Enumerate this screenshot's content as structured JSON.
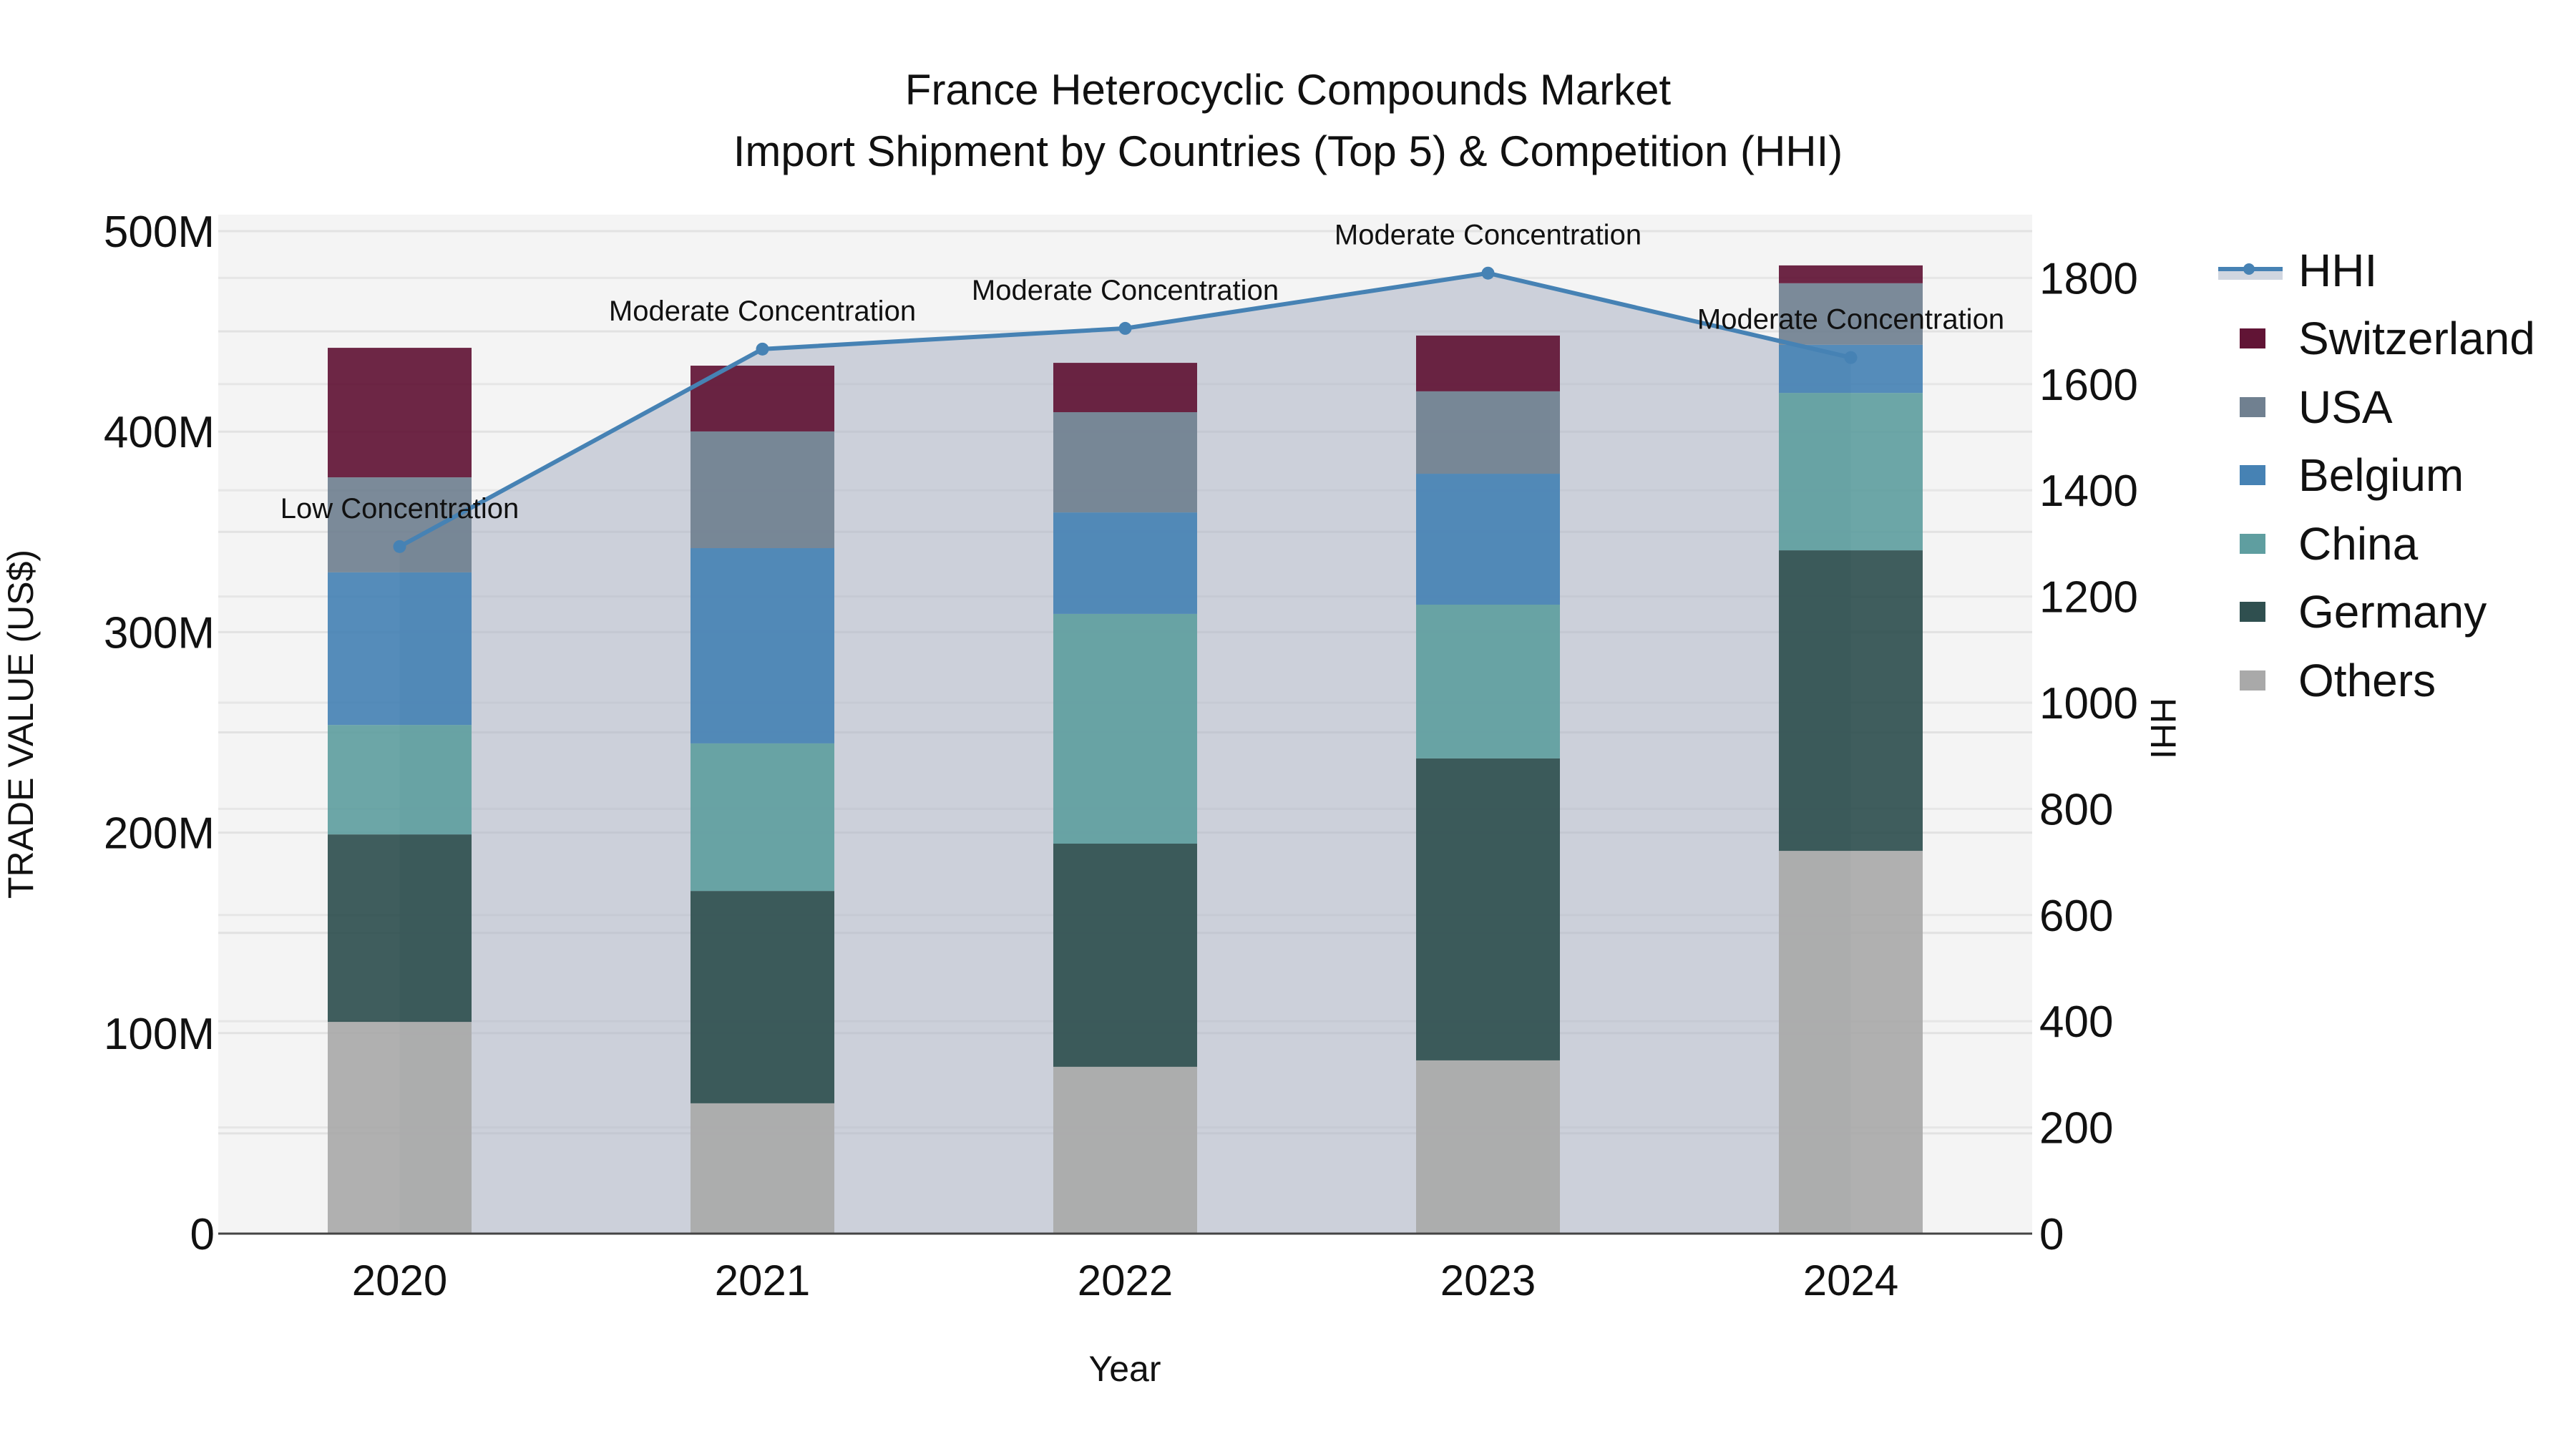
{
  "title": {
    "line1": "France Heterocyclic Compounds Market",
    "line2": "Import Shipment by Countries (Top 5) & Competition (HHI)"
  },
  "axes": {
    "x_title": "Year",
    "y_left_title": "TRADE VALUE (US$)",
    "y_right_title": "HHI",
    "x_ticks": [
      "2020",
      "2021",
      "2022",
      "2023",
      "2024"
    ],
    "y_left_ticks": [
      "0",
      "100M",
      "200M",
      "300M",
      "400M",
      "500M"
    ],
    "y_right_ticks": [
      "0",
      "200",
      "400",
      "600",
      "800",
      "1000",
      "1200",
      "1400",
      "1600",
      "1800"
    ]
  },
  "legend": {
    "items": [
      {
        "label": "HHI",
        "type": "line",
        "color": "#4682b4"
      },
      {
        "label": "Switzerland",
        "type": "bar",
        "color": "#611435"
      },
      {
        "label": "USA",
        "type": "bar",
        "color": "#708090"
      },
      {
        "label": "Belgium",
        "type": "bar",
        "color": "#4682b4"
      },
      {
        "label": "China",
        "type": "bar",
        "color": "#5f9ea0"
      },
      {
        "label": "Germany",
        "type": "bar",
        "color": "#2f4f4f"
      },
      {
        "label": "Others",
        "type": "bar",
        "color": "#a9a9a9"
      }
    ]
  },
  "annotations": [
    {
      "year": "2020",
      "text": "Low Concentration"
    },
    {
      "year": "2021",
      "text": "Moderate Concentration"
    },
    {
      "year": "2022",
      "text": "Moderate Concentration"
    },
    {
      "year": "2023",
      "text": "Moderate Concentration"
    },
    {
      "year": "2024",
      "text": "Moderate Concentration"
    }
  ],
  "chart_data": {
    "type": "bar",
    "stacked": true,
    "title": "France Heterocyclic Compounds Market — Import Shipment by Countries (Top 5) & Competition (HHI)",
    "xlabel": "Year",
    "ylabel": "TRADE VALUE (US$)",
    "y2label": "HHI",
    "categories": [
      "2020",
      "2021",
      "2022",
      "2023",
      "2024"
    ],
    "unit": "US$ millions",
    "ylim": [
      0,
      508
    ],
    "y2lim": [
      0,
      1920
    ],
    "grid": true,
    "legend_position": "right",
    "series": [
      {
        "name": "Others",
        "type": "bar",
        "color": "#a9a9a9",
        "values": [
          105.6,
          65.0,
          83.2,
          86.4,
          190.9
        ]
      },
      {
        "name": "Germany",
        "type": "bar",
        "color": "#2f4f4f",
        "values": [
          93.5,
          105.9,
          111.3,
          150.6,
          149.9
        ]
      },
      {
        "name": "China",
        "type": "bar",
        "color": "#5f9ea0",
        "values": [
          54.6,
          73.6,
          114.6,
          76.7,
          78.5
        ]
      },
      {
        "name": "Belgium",
        "type": "bar",
        "color": "#4682b4",
        "values": [
          76.1,
          97.4,
          50.6,
          65.3,
          24.0
        ]
      },
      {
        "name": "USA",
        "type": "bar",
        "color": "#708090",
        "values": [
          47.4,
          58.2,
          50.0,
          41.1,
          30.7
        ]
      },
      {
        "name": "Switzerland",
        "type": "bar",
        "color": "#611435",
        "values": [
          64.6,
          32.8,
          24.6,
          27.8,
          8.9
        ]
      },
      {
        "name": "HHI",
        "type": "line",
        "axis": "y2",
        "color": "#4682b4",
        "fill": "tozeroy",
        "values": [
          1294,
          1666,
          1705,
          1809,
          1650
        ]
      }
    ],
    "totals": [
      441.8,
      432.9,
      434.3,
      447.9,
      482.9
    ],
    "annotations": [
      "Low Concentration",
      "Moderate Concentration",
      "Moderate Concentration",
      "Moderate Concentration",
      "Moderate Concentration"
    ]
  }
}
